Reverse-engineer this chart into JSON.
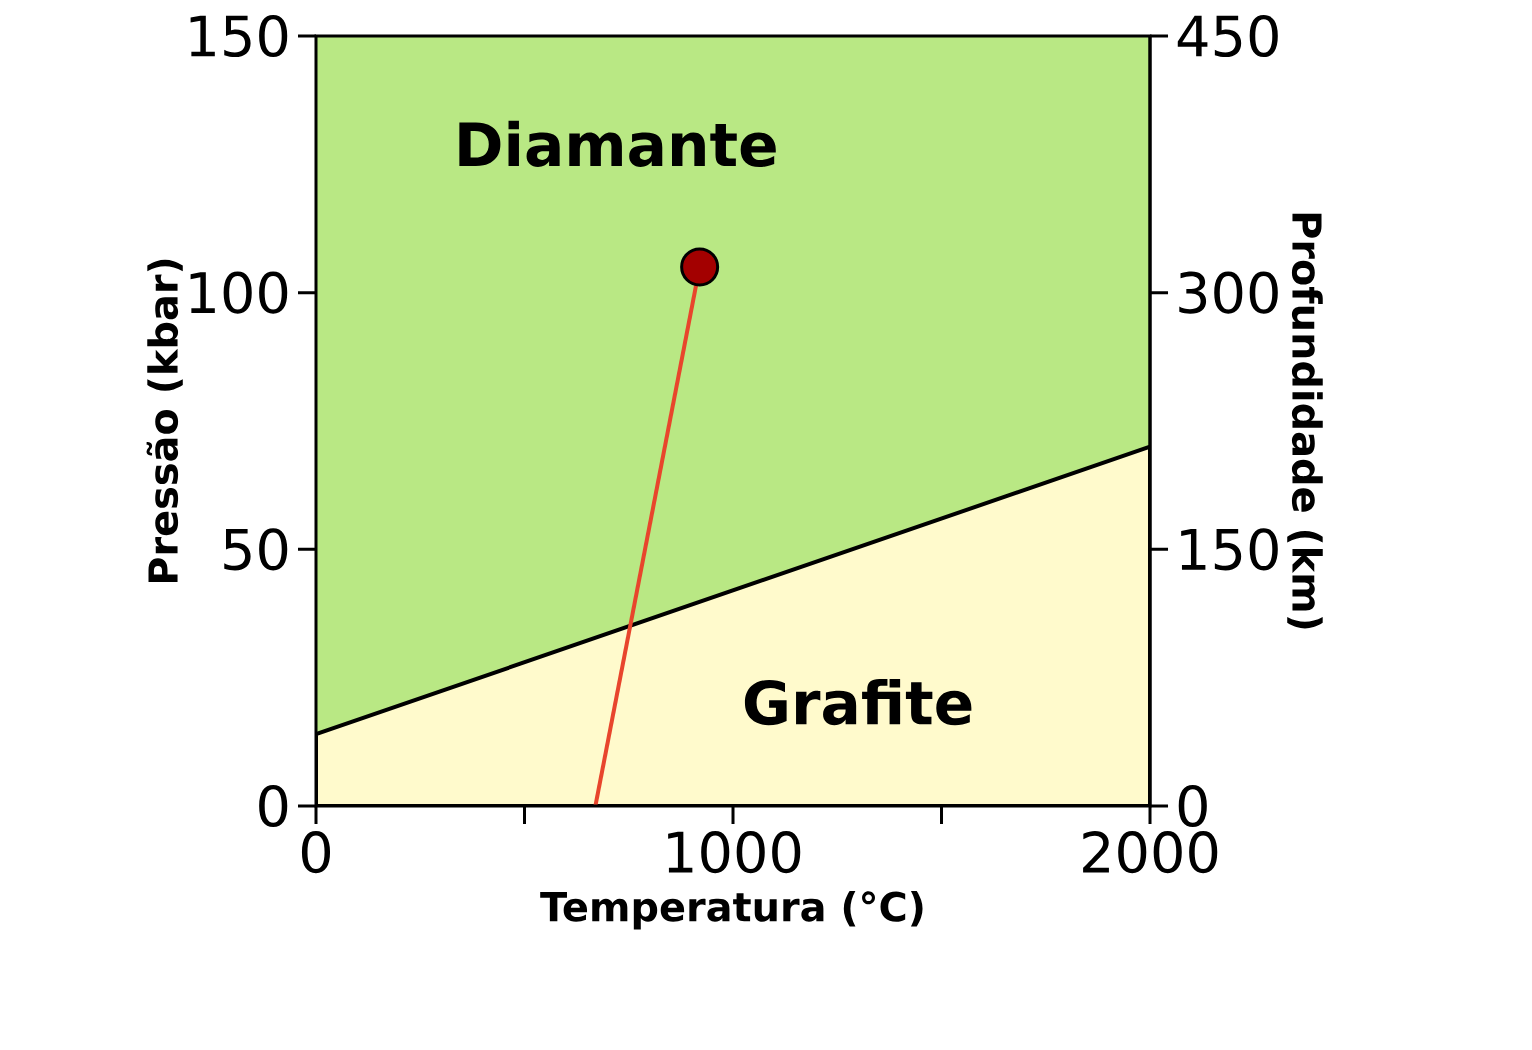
{
  "chart_data": {
    "type": "line",
    "xlabel": "Temperatura (°C)",
    "ylabel": "Pressão (kbar)",
    "y2label": "Profundidade (km)",
    "xlim": [
      0,
      2000
    ],
    "ylim": [
      0,
      150
    ],
    "y2lim": [
      0,
      450
    ],
    "xticks": [
      0,
      {
        "value": 500,
        "label": null
      },
      1000,
      {
        "value": 1500,
        "label": null
      },
      2000
    ],
    "yticks": [
      0,
      50,
      100,
      150
    ],
    "y2ticks": [
      0,
      150,
      300,
      450
    ],
    "bands": [
      {
        "axis": "y",
        "from": 0,
        "to": 150,
        "color": "#b9e884"
      }
    ],
    "series": [
      {
        "type": "area",
        "color": "#fffacc",
        "x": [
          0,
          2000
        ],
        "values": [
          14,
          70
        ]
      },
      {
        "color": "#e8452c",
        "x": [
          670,
          920
        ],
        "values": [
          0,
          105
        ],
        "marker": "none",
        "line_style": "solid"
      },
      {
        "type": "scatter",
        "color": "#a30000",
        "x": [
          920
        ],
        "values": [
          105
        ],
        "marker": "circle"
      }
    ],
    "annotations": [
      "Diamante",
      "Grafite"
    ]
  }
}
